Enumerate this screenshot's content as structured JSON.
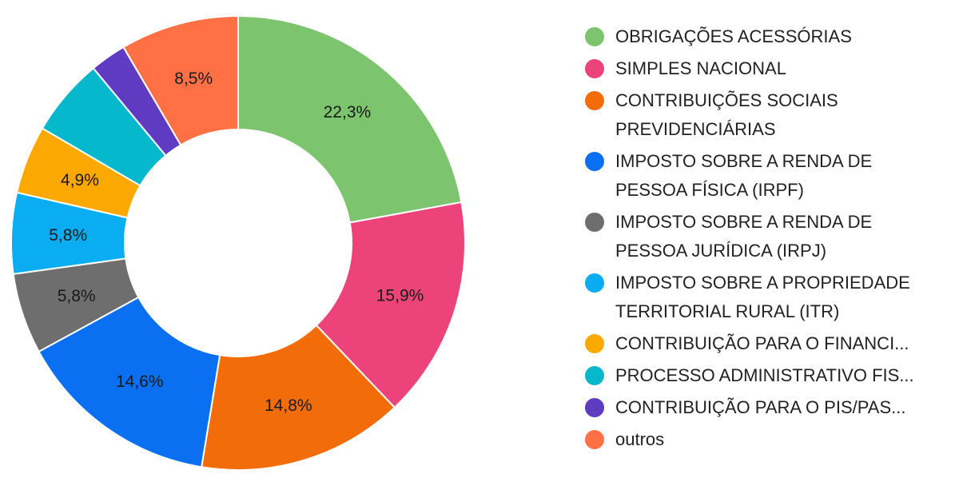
{
  "chart_data": {
    "type": "pie",
    "variant": "donut",
    "legend_position": "right",
    "slices": [
      {
        "label": "OBRIGAÇÕES ACESSÓRIAS",
        "value": 22.3,
        "display": "22,3%",
        "color": "#7DC46E"
      },
      {
        "label": "SIMPLES NACIONAL",
        "value": 15.9,
        "display": "15,9%",
        "color": "#EC437A"
      },
      {
        "label": "CONTRIBUIÇÕES SOCIAIS\nPREVIDENCIÁRIAS",
        "value": 14.8,
        "display": "14,8%",
        "color": "#F26D0A"
      },
      {
        "label": "IMPOSTO SOBRE A RENDA DE\nPESSOA FÍSICA (IRPF)",
        "value": 14.6,
        "display": "14,6%",
        "color": "#0A6FF0"
      },
      {
        "label": "IMPOSTO SOBRE A RENDA DE\nPESSOA JURÍDICA (IRPJ)",
        "value": 5.8,
        "display": "5,8%",
        "color": "#6E6E6E"
      },
      {
        "label": "IMPOSTO SOBRE A PROPRIEDADE\nTERRITORIAL RURAL (ITR)",
        "value": 5.8,
        "display": "5,8%",
        "color": "#0AACF2"
      },
      {
        "label": "CONTRIBUIÇÃO PARA O FINANCI...",
        "value": 4.9,
        "display": "4,9%",
        "color": "#FCA802"
      },
      {
        "label": "PROCESSO ADMINISTRATIVO FIS...",
        "value": 5.6,
        "display": "",
        "color": "#06B8CC"
      },
      {
        "label": "CONTRIBUIÇÃO PARA O PIS/PAS...",
        "value": 2.6,
        "display": "",
        "color": "#5E3BC1"
      },
      {
        "label": "outros",
        "value": 8.5,
        "display": "8,5%",
        "color": "#FF7145"
      }
    ]
  }
}
